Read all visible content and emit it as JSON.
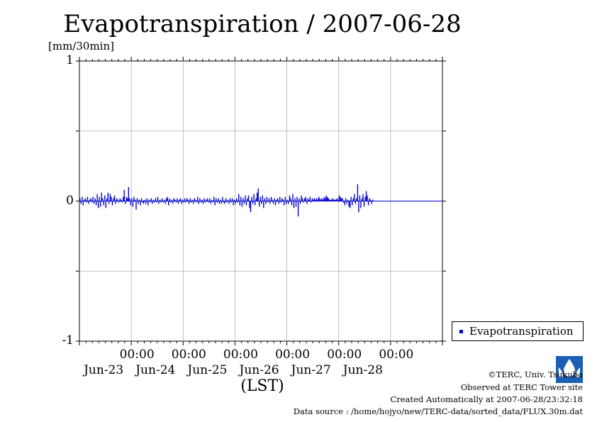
{
  "title": "Evapotranspiration / 2007-06-28",
  "ylabel": "[mm/30min]",
  "xlabel": "(LST)",
  "footer": {
    "copyright": "©TERC, Univ. Tsukuba",
    "site": "Observed at TERC Tower site",
    "created": "Created Automatically at 2007-06-28/23:32:18",
    "source": "Data source : /home/hojyo/new/TERC-data/sorted_data/FLUX.30m.dat"
  },
  "logo_text": "TERC",
  "colors": {
    "series": "#0000cc",
    "grid": "#b0b0b0"
  },
  "chart_data": {
    "type": "bar",
    "title": "Evapotranspiration / 2007-06-28",
    "ylabel": "[mm/30min]",
    "xlabel": "(LST)",
    "ylim": [
      -1,
      1
    ],
    "yticks": [
      {
        "value": 1,
        "label": "1"
      },
      {
        "value": 0,
        "label": "0"
      },
      {
        "value": -1,
        "label": "-1"
      }
    ],
    "xlim": [
      "2007-06-22 00:00",
      "2007-06-29 00:00"
    ],
    "xticks": [
      {
        "time": "2007-06-23 00:00",
        "label": "00:00",
        "date": "Jun-23"
      },
      {
        "time": "2007-06-24 00:00",
        "label": "00:00",
        "date": "Jun-24"
      },
      {
        "time": "2007-06-25 00:00",
        "label": "00:00",
        "date": "Jun-25"
      },
      {
        "time": "2007-06-26 00:00",
        "label": "00:00",
        "date": "Jun-26"
      },
      {
        "time": "2007-06-27 00:00",
        "label": "00:00",
        "date": "Jun-27"
      },
      {
        "time": "2007-06-28 00:00",
        "label": "00:00",
        "date": "Jun-28"
      }
    ],
    "grid": true,
    "legend_position": "outside-right-bottom",
    "series": [
      {
        "name": "Evapotranspiration",
        "interval_minutes": 30,
        "start": "2007-06-22 00:00",
        "values": [
          0.02,
          -0.02,
          0.03,
          -0.03,
          0.01,
          0.02,
          -0.01,
          0.03,
          -0.02,
          0.01,
          0.02,
          -0.01,
          0.03,
          -0.02,
          0.02,
          -0.03,
          0.05,
          -0.05,
          0.03,
          -0.04,
          0.06,
          0.02,
          -0.03,
          0.04,
          -0.05,
          0.02,
          0.06,
          -0.02,
          0.05,
          0.03,
          -0.03,
          0.02,
          0.04,
          -0.02,
          0.02,
          0.01,
          -0.01,
          0.02,
          0.01,
          -0.01,
          0.03,
          0.08,
          -0.02,
          0.03,
          0.02,
          0.1,
          0.02,
          -0.03,
          0.02,
          -0.04,
          0.03,
          0.01,
          -0.06,
          0.02,
          -0.02,
          0.01,
          -0.03,
          0.02,
          -0.01,
          -0.02,
          0.01,
          -0.02,
          0.02,
          -0.03,
          0.01,
          -0.01,
          0.02,
          -0.02,
          0.01,
          -0.01,
          0.02,
          -0.01,
          0.03,
          -0.02,
          0.01,
          -0.01,
          0.02,
          -0.01,
          0.01,
          -0.02,
          0.02,
          0.03,
          -0.03,
          0.02,
          -0.01,
          0.01,
          -0.02,
          0.02,
          0.01,
          -0.01,
          0.02,
          -0.02,
          0.01,
          0.02,
          -0.02,
          0.01,
          -0.01,
          0.02,
          -0.01,
          0.02,
          0.01,
          -0.02,
          0.02,
          -0.01,
          0.01,
          -0.02,
          0.02,
          0.01,
          -0.01,
          0.03,
          -0.02,
          0.02,
          -0.01,
          0.01,
          -0.02,
          0.02,
          -0.01,
          0.01,
          0.02,
          -0.01,
          0.02,
          -0.02,
          0.01,
          -0.01,
          0.03,
          -0.03,
          0.02,
          -0.01,
          0.02,
          -0.02,
          0.01,
          -0.02,
          0.03,
          -0.01,
          -0.02,
          0.02,
          -0.01,
          0.01,
          -0.02,
          0.02,
          -0.01,
          0.02,
          -0.03,
          0.01,
          -0.02,
          0.02,
          -0.01,
          0.05,
          -0.03,
          0.03,
          -0.04,
          0.02,
          -0.02,
          0.04,
          -0.03,
          0.02,
          0.04,
          -0.05,
          -0.08,
          0.03,
          -0.02,
          0.05,
          -0.03,
          0.02,
          0.06,
          0.09,
          -0.04,
          0.03,
          -0.02,
          0.04,
          -0.05,
          0.02,
          -0.02,
          0.03,
          -0.01,
          0.02,
          -0.02,
          0.03,
          0.01,
          -0.02,
          0.02,
          -0.03,
          0.01,
          0.02,
          -0.02,
          0.03,
          -0.01,
          0.02,
          0.01,
          -0.03,
          0.03,
          -0.02,
          0.01,
          -0.02,
          0.04,
          0.02,
          -0.03,
          0.05,
          -0.05,
          0.02,
          -0.04,
          0.03,
          -0.11,
          0.02,
          -0.02,
          0.04,
          0.02,
          -0.01,
          0.02,
          0.03,
          -0.02,
          0.02,
          0.01,
          0.03,
          -0.01,
          0.02,
          0.01,
          0.02,
          0.01,
          0.02,
          0.01,
          0.03,
          0.02,
          0.01,
          0.02,
          0.01,
          0.03,
          0.02,
          0.04,
          0.03,
          0.02,
          0.01,
          0.01,
          0.01,
          0.02,
          0.01,
          0.01,
          0.01,
          0.02,
          0.01,
          0.04,
          0.03,
          0.02,
          0.02,
          -0.01,
          -0.03,
          0.02,
          -0.02,
          0.01,
          -0.04,
          -0.05,
          0.03,
          -0.03,
          0.02,
          0.05,
          -0.02,
          0.02,
          0.12,
          -0.08,
          0.04,
          -0.05,
          0.02,
          0.05,
          -0.04,
          0.03,
          0.07,
          0.04,
          -0.03,
          0.02,
          0.01,
          -0.02,
          0.01
        ]
      }
    ]
  }
}
